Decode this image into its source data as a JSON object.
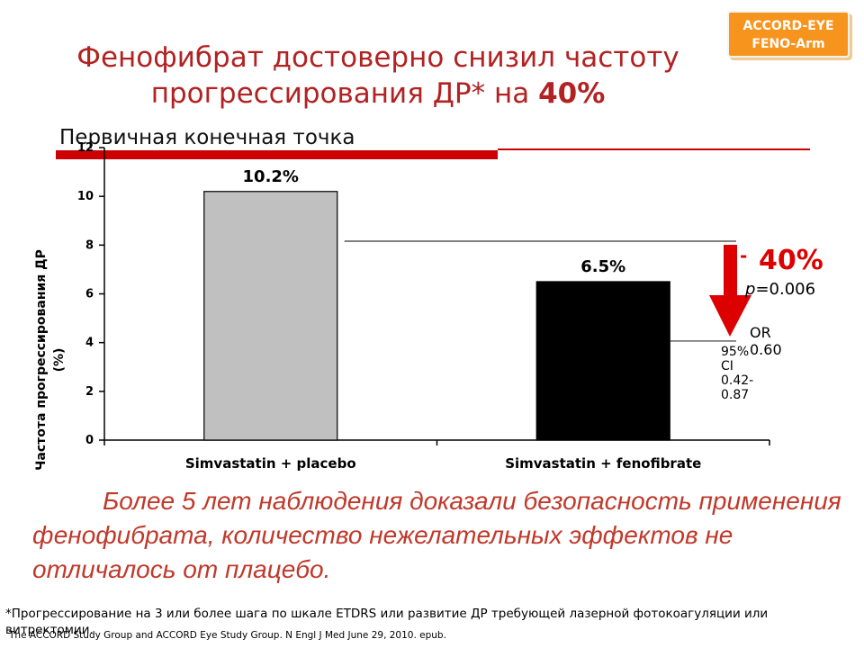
{
  "badge": {
    "line1": "ACCORD-EYE",
    "line2": "FENO-Arm",
    "color": "#f7941d"
  },
  "title": {
    "line1": "Фенофибрат достоверно снизил частоту",
    "line2_prefix": "прогрессирования ДР* на ",
    "line2_emphasis": "40%",
    "color": "#b22222"
  },
  "subtitle": "Первичная конечная точка",
  "chart_data": {
    "type": "bar",
    "categories": [
      "Simvastatin + placebo",
      "Simvastatin + fenofibrate"
    ],
    "values": [
      10.2,
      6.5
    ],
    "data_labels": [
      "10.2%",
      "6.5%"
    ],
    "bar_colors": [
      "#c0c0c0",
      "#000000"
    ],
    "ylabel": "Частота прогрессирования ДР (%)",
    "ylim": [
      0,
      12
    ],
    "yticks": [
      "0",
      "2",
      "4",
      "6",
      "8",
      "10",
      "12"
    ],
    "grid": false
  },
  "annotation": {
    "dash": "-",
    "reduction": "40%",
    "p_prefix": "p",
    "p_value": "=0.006",
    "or_text": "OR 0.60",
    "ci_text": "95% CI 0.42-0.87",
    "arrow_color": "#dd0000"
  },
  "note": "Более 5 лет наблюдения доказали безопасность применения фенофибрата, количество нежелательных эффектов не отличалось от плацебо.",
  "footnote": "*Прогрессирование на 3 или более шага по шкале ETDRS или развитие ДР требующей лазерной фотокоагуляции или витректомии.",
  "reference": "The ACCORD Study Group and ACCORD Eye Study Group. N Engl J Med June 29, 2010. epub."
}
